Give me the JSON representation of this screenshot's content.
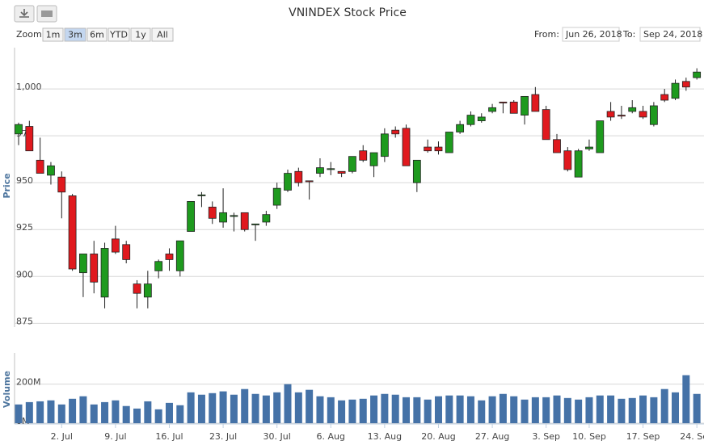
{
  "chart_data": {
    "type": "candlestick",
    "title": "VNINDEX Stock Price",
    "zoom_label": "Zoom",
    "zoom_buttons": [
      "1m",
      "3m",
      "6m",
      "YTD",
      "1y",
      "All"
    ],
    "zoom_selected": 1,
    "from_label": "From:",
    "from_date": "Jun 26, 2018",
    "to_label": "To:",
    "to_date": "Sep 24, 2018",
    "ylabel": "Price",
    "up_color": "#1e9a1e",
    "down_color": "#e0191e",
    "categories": [
      null,
      null,
      null,
      null,
      "2. Jul",
      null,
      null,
      null,
      null,
      "9. Jul",
      null,
      null,
      null,
      null,
      "16. Jul",
      null,
      null,
      null,
      null,
      "23. Jul",
      null,
      null,
      null,
      null,
      "30. Jul",
      null,
      null,
      null,
      null,
      "6. Aug",
      null,
      null,
      null,
      null,
      "13. Aug",
      null,
      null,
      null,
      null,
      "20. Aug",
      null,
      null,
      null,
      null,
      "27. Aug",
      null,
      null,
      null,
      null,
      "3. Sep",
      null,
      null,
      null,
      "10. Sep",
      null,
      null,
      null,
      null,
      "17. Sep",
      null,
      null,
      null,
      null,
      "24. Sep"
    ],
    "open": [
      976,
      980,
      962,
      954,
      953,
      943,
      902,
      912,
      889,
      920,
      917,
      896,
      889,
      903,
      912,
      903,
      924,
      943,
      937,
      929,
      932,
      934,
      927.5,
      929,
      938,
      946,
      956,
      951,
      955,
      957,
      956,
      956,
      967,
      959,
      964,
      978,
      979,
      950,
      969,
      969,
      966,
      977,
      981,
      983,
      988,
      993,
      993,
      986,
      997,
      989,
      973,
      967,
      953,
      968,
      966,
      988,
      986,
      988,
      988,
      981,
      997,
      995,
      1004,
      1006
    ],
    "high": [
      982,
      983,
      974,
      961,
      956,
      944,
      912,
      919,
      918,
      927,
      919,
      898,
      903,
      909,
      915,
      919,
      940,
      945,
      940,
      947,
      934,
      934,
      928,
      935,
      950,
      957,
      958,
      951,
      963,
      961,
      956,
      964,
      970,
      966,
      979,
      980,
      981,
      962,
      973,
      972,
      977,
      983,
      988,
      987,
      992,
      993,
      994,
      996,
      1001,
      991,
      976,
      969,
      968,
      973,
      983,
      993,
      991,
      994,
      991,
      993,
      1000,
      1005,
      1006,
      1011
    ],
    "low": [
      970,
      967,
      955,
      949,
      931,
      903,
      889,
      891,
      883,
      912,
      907,
      883,
      883,
      899,
      903,
      900,
      924,
      937,
      928,
      926,
      924,
      924,
      919,
      927,
      936,
      945,
      948,
      941,
      953,
      954,
      953,
      955,
      961,
      953,
      961,
      974,
      959,
      945,
      966,
      965,
      966,
      976,
      980,
      982,
      987,
      987,
      987,
      981,
      988,
      973,
      966,
      956,
      953,
      967,
      966,
      983,
      984,
      987,
      984,
      980,
      993,
      994,
      999,
      1005
    ],
    "close": [
      981,
      967,
      955,
      959,
      945,
      904,
      912,
      897,
      915,
      913,
      909,
      891,
      896,
      908,
      909,
      919,
      940,
      943.5,
      931,
      934,
      932.5,
      925,
      928,
      933,
      947,
      955,
      950,
      950.5,
      958,
      957.5,
      955,
      964,
      962,
      966,
      976,
      976,
      959,
      962,
      967,
      967,
      977,
      981,
      986,
      985,
      990,
      992.5,
      987,
      996,
      988,
      973,
      966,
      957,
      967,
      969,
      983,
      985,
      985.5,
      990,
      985,
      991,
      994,
      1003,
      1001,
      1009
    ],
    "ylim": [
      873,
      1022
    ],
    "yticks": [
      875,
      900,
      925,
      950,
      975,
      {
        "value": 1000,
        "label": "1,000"
      }
    ],
    "grid": true,
    "volume": {
      "ylabel": "Volume",
      "color": "#4572a7",
      "values": [
        96,
        108,
        112,
        117,
        96,
        125,
        138,
        96,
        108,
        117,
        88,
        75,
        112,
        71,
        104,
        92,
        158,
        146,
        154,
        163,
        146,
        175,
        150,
        142,
        158,
        200,
        158,
        171,
        138,
        133,
        117,
        121,
        125,
        142,
        150,
        146,
        133,
        133,
        121,
        138,
        142,
        142,
        138,
        117,
        138,
        150,
        138,
        121,
        133,
        133,
        142,
        129,
        121,
        133,
        142,
        142,
        125,
        129,
        142,
        133,
        175,
        158,
        246,
        150
      ],
      "ylim": [
        0,
        360
      ],
      "yticks": [
        {
          "value": 0,
          "label": "0M"
        },
        {
          "value": 200,
          "label": "200M"
        }
      ]
    }
  }
}
